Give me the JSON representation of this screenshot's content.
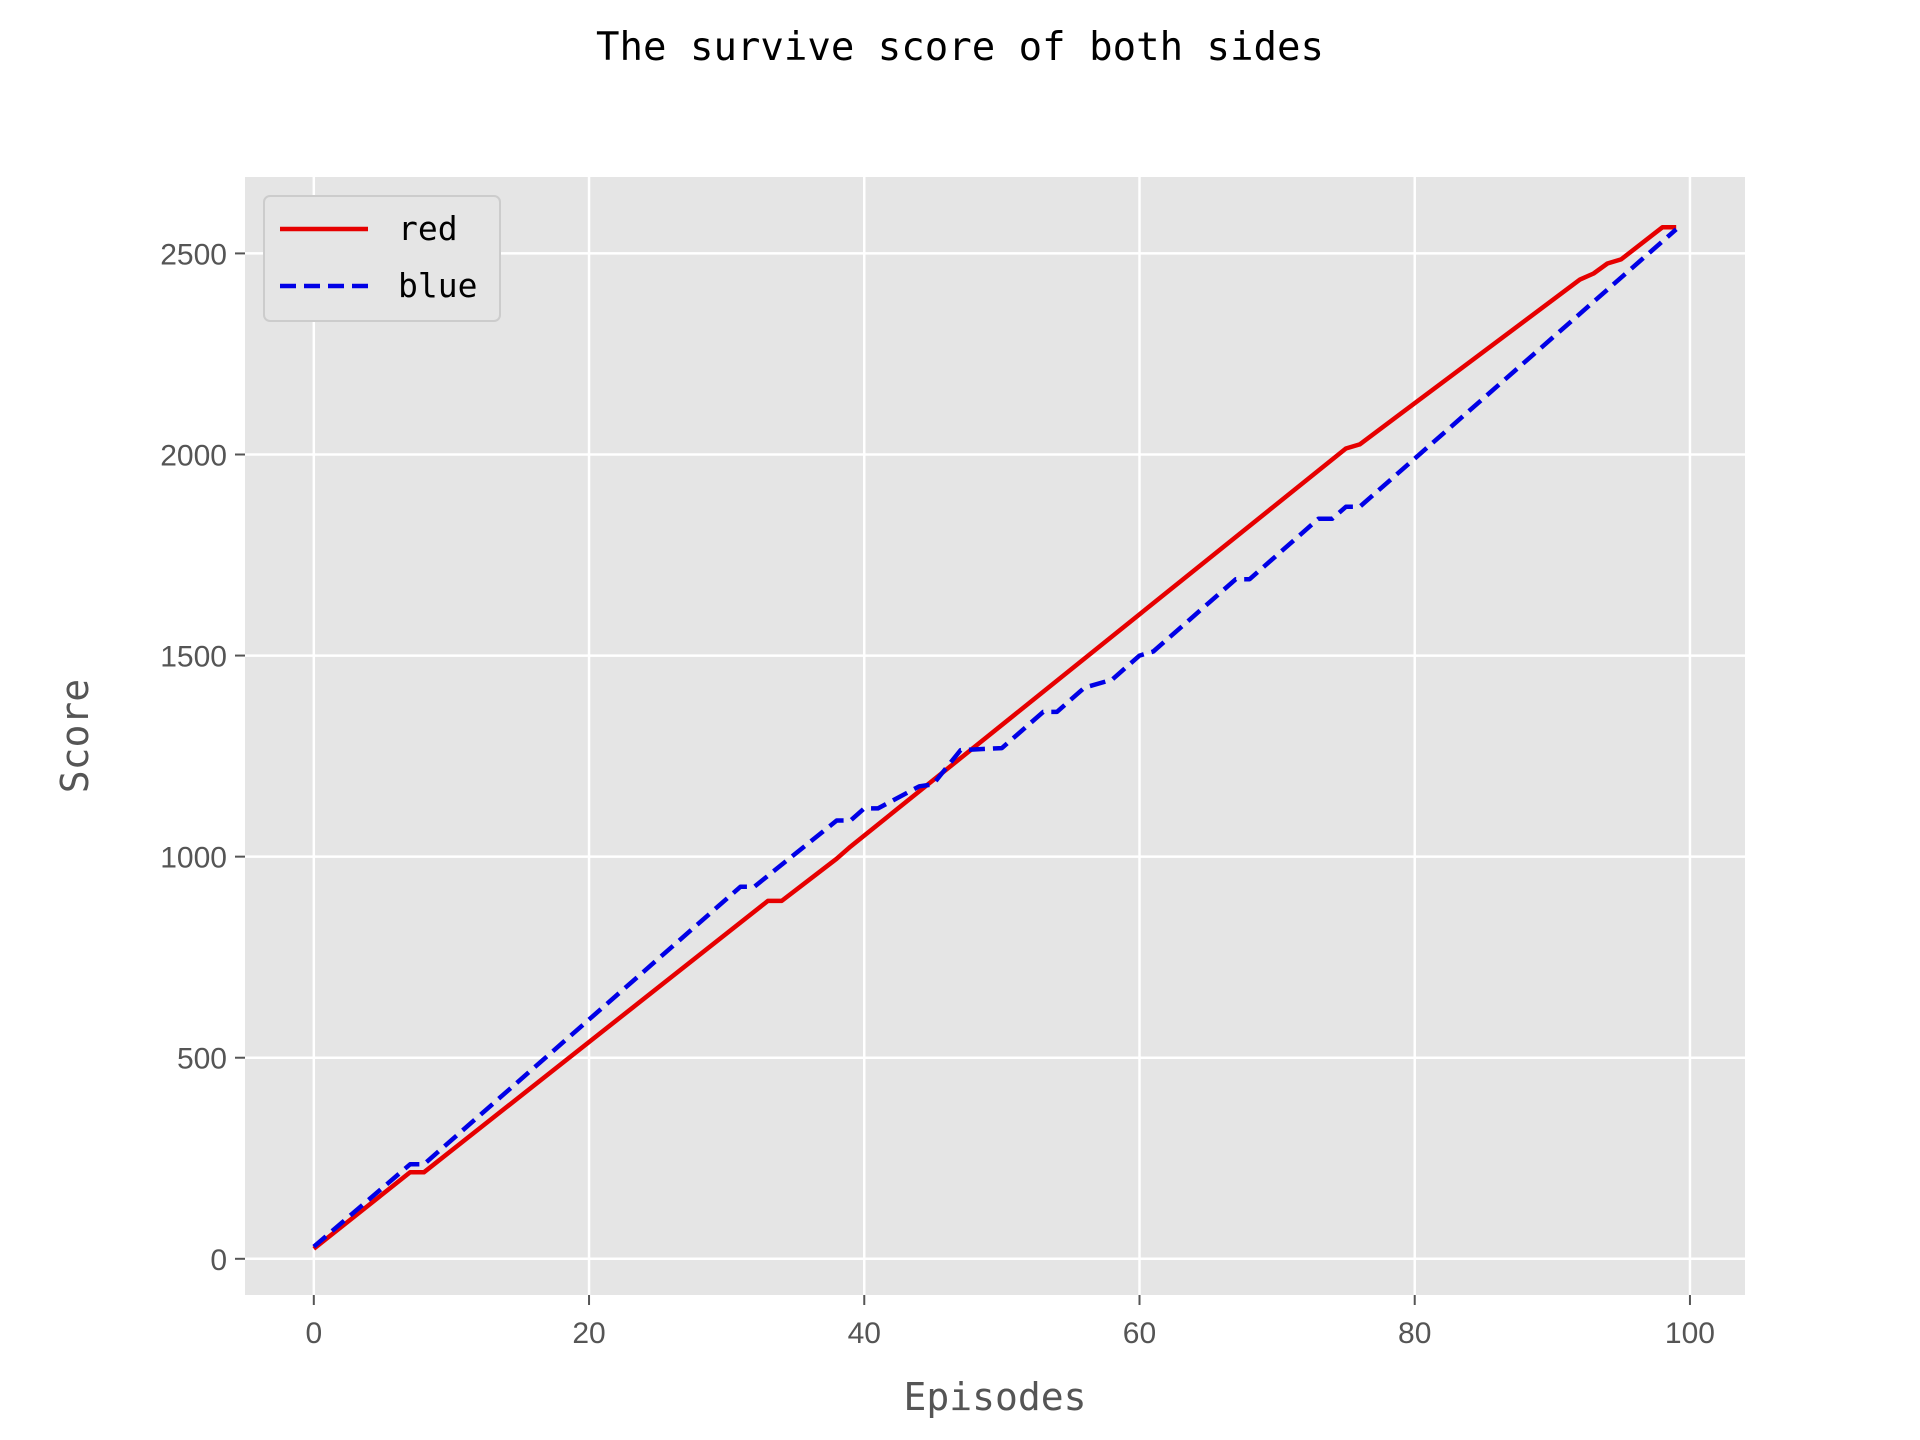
{
  "chart_data": {
    "type": "line",
    "title": "The survive score of both sides",
    "xlabel": "Episodes",
    "ylabel": "Score",
    "xlim": [
      -5,
      104
    ],
    "ylim": [
      -90,
      2690
    ],
    "xticks": [
      0,
      20,
      40,
      60,
      80,
      100
    ],
    "yticks": [
      0,
      500,
      1000,
      1500,
      2000,
      2500
    ],
    "xtick_labels": [
      "0",
      "20",
      "40",
      "60",
      "80",
      "100"
    ],
    "ytick_labels": [
      "0",
      "500",
      "1000",
      "1500",
      "2000",
      "2500"
    ],
    "grid": true,
    "legend_placement": "upper-left",
    "background": "#e5e5e5",
    "series": [
      {
        "name": "red",
        "color": "#e60000",
        "style": "solid",
        "points": [
          [
            0,
            25
          ],
          [
            7,
            215
          ],
          [
            8,
            215
          ],
          [
            33,
            890
          ],
          [
            34,
            890
          ],
          [
            38,
            995
          ],
          [
            39,
            1025
          ],
          [
            75,
            2015
          ],
          [
            76,
            2025
          ],
          [
            92,
            2435
          ],
          [
            93,
            2450
          ],
          [
            94,
            2475
          ],
          [
            95,
            2485
          ],
          [
            98,
            2565
          ],
          [
            99,
            2565
          ]
        ]
      },
      {
        "name": "blue",
        "color": "#0000e6",
        "style": "dashed",
        "points": [
          [
            0,
            30
          ],
          [
            7,
            235
          ],
          [
            8,
            235
          ],
          [
            31,
            925
          ],
          [
            32,
            925
          ],
          [
            38,
            1090
          ],
          [
            39,
            1090
          ],
          [
            40,
            1120
          ],
          [
            41,
            1120
          ],
          [
            44,
            1175
          ],
          [
            45,
            1180
          ],
          [
            47,
            1265
          ],
          [
            50,
            1270
          ],
          [
            53,
            1360
          ],
          [
            54,
            1360
          ],
          [
            56,
            1420
          ],
          [
            58,
            1440
          ],
          [
            60,
            1500
          ],
          [
            61,
            1510
          ],
          [
            67,
            1690
          ],
          [
            68,
            1690
          ],
          [
            73,
            1840
          ],
          [
            74,
            1840
          ],
          [
            75,
            1870
          ],
          [
            76,
            1870
          ],
          [
            99,
            2560
          ]
        ]
      }
    ]
  }
}
